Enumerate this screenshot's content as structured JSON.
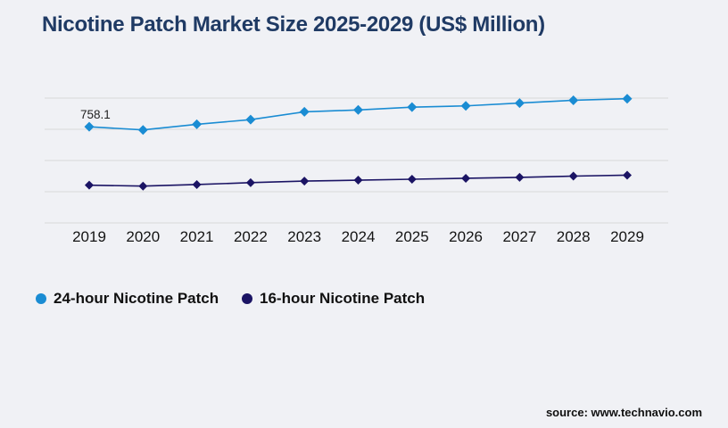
{
  "colors": {
    "background": "#f0f1f5",
    "title": "#1f3a64",
    "gridline": "#d9d9d9",
    "series_24_hour": "#1a8cd3",
    "series_16_hour": "#1b1464",
    "text": "#141414"
  },
  "chart_data": {
    "type": "line",
    "title": "Nicotine Patch Market Size 2025-2029 (US$ Million)",
    "xlabel": "",
    "ylabel": "",
    "categories": [
      "2019",
      "2020",
      "2021",
      "2022",
      "2023",
      "2024",
      "2025",
      "2026",
      "2027",
      "2028",
      "2029"
    ],
    "series": [
      {
        "name": "24-hour Nicotine Patch",
        "color": "#1a8cd3",
        "marker": "diamond",
        "values": [
          758.1,
          748,
          766,
          781,
          806,
          812,
          821,
          825,
          834,
          843,
          848
        ]
      },
      {
        "name": "16-hour Nicotine Patch",
        "color": "#1b1464",
        "marker": "diamond",
        "values": [
          571,
          568,
          573,
          579,
          584,
          587,
          590,
          593,
          596,
          600,
          603
        ]
      }
    ],
    "ylim": [
      450,
      850
    ],
    "y_gridlines": [
      450,
      550,
      650,
      750,
      850
    ],
    "grid": "horizontal-only",
    "y_axis_labels_visible": false,
    "legend_position": "bottom-left",
    "annotation": {
      "text": "758.1",
      "series": "24-hour Nicotine Patch",
      "category": "2019"
    }
  },
  "footer": {
    "source": "source: www.technavio.com"
  }
}
